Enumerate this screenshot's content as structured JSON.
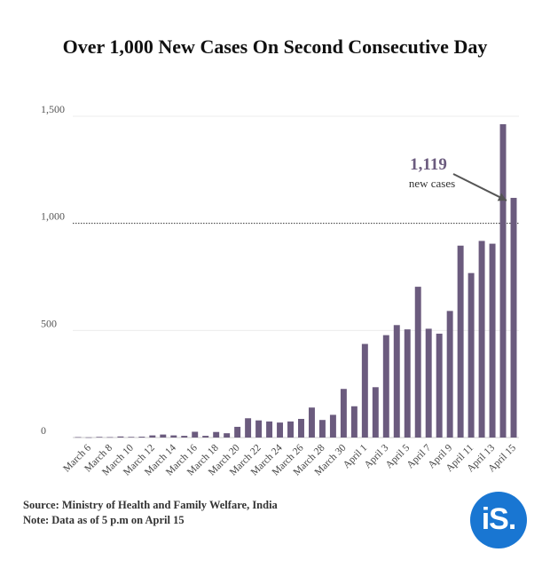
{
  "brand": {
    "logo_text": "iS.",
    "accent": "#1976d2"
  },
  "source": "Source: Ministry of Health and Family Welfare, India",
  "note": "Note: Data as of 5 p.m on April 15",
  "chart_data": {
    "type": "bar",
    "title": "Over 1,000 New Cases On Second Consecutive Day",
    "xlabel": "",
    "ylabel": "",
    "ylim": [
      0,
      1500
    ],
    "yticks": [
      0,
      500,
      1000,
      1500
    ],
    "ytick_labels": [
      "0",
      "500",
      "1,000",
      "1,500"
    ],
    "grid": true,
    "bar_color": "#6b5b7e",
    "reference_line": {
      "value": 1000,
      "style": "dotted"
    },
    "annotation": {
      "value_label": "1,119",
      "text": "new cases",
      "target_category": "April 15"
    },
    "categories": [
      "March 5",
      "March 6",
      "March 7",
      "March 8",
      "March 9",
      "March 10",
      "March 11",
      "March 12",
      "March 13",
      "March 14",
      "March 15",
      "March 16",
      "March 17",
      "March 18",
      "March 19",
      "March 20",
      "March 21",
      "March 22",
      "March 23",
      "March 24",
      "March 25",
      "March 26",
      "March 27",
      "March 28",
      "March 29",
      "March 30",
      "March 31",
      "April 1",
      "April 2",
      "April 3",
      "April 4",
      "April 5",
      "April 6",
      "April 7",
      "April 8",
      "April 9",
      "April 10",
      "April 11",
      "April 12",
      "April 13",
      "April 14",
      "April 15"
    ],
    "xtick_labels": [
      "March 6",
      "March 8",
      "March 10",
      "March 12",
      "March 14",
      "March 16",
      "March 18",
      "March 20",
      "March 22",
      "March 24",
      "March 26",
      "March 28",
      "March 30",
      "April 1",
      "April 3",
      "April 5",
      "April 7",
      "April 9",
      "April 11",
      "April 13",
      "April 15"
    ],
    "values": [
      2,
      1,
      3,
      2,
      5,
      3,
      4,
      10,
      14,
      10,
      8,
      27,
      8,
      26,
      20,
      50,
      90,
      80,
      75,
      70,
      75,
      87,
      140,
      82,
      106,
      227,
      146,
      437,
      235,
      478,
      525,
      505,
      704,
      508,
      485,
      591,
      896,
      768,
      918,
      905,
      1463,
      1119
    ]
  }
}
